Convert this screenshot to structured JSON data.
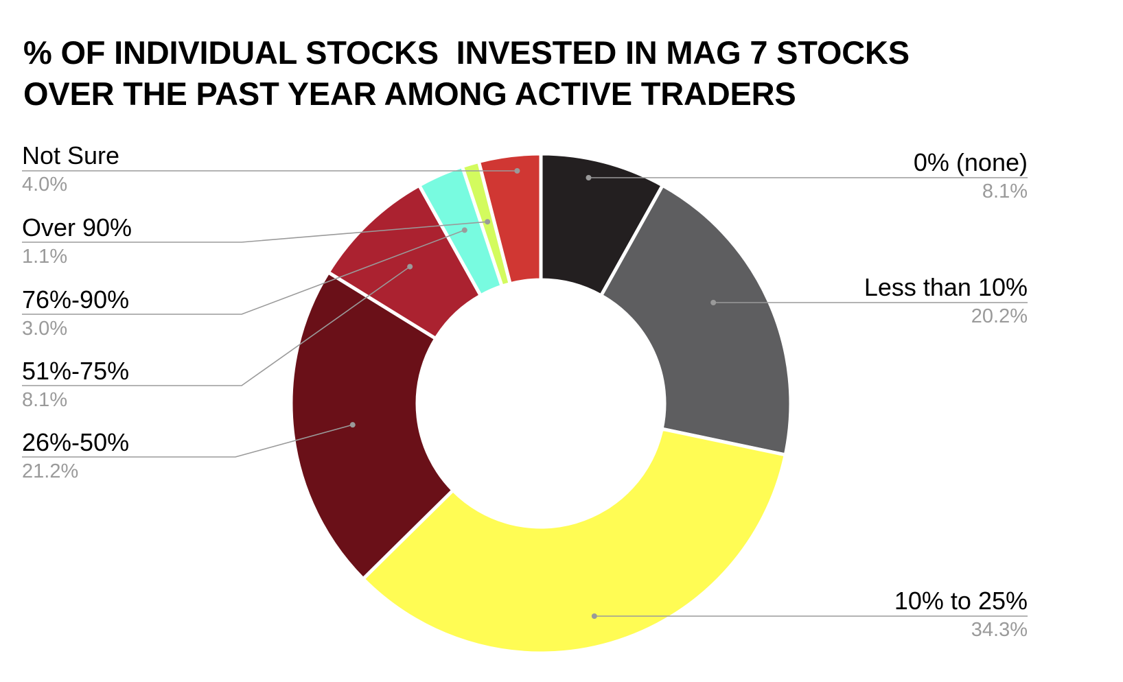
{
  "title": {
    "line1": "% OF INDIVIDUAL STOCKS  INVESTED IN MAG 7 STOCKS",
    "line2": "OVER THE PAST YEAR AMONG ACTIVE TRADERS"
  },
  "chart_data": {
    "type": "pie",
    "subtype": "donut",
    "title": "% OF INDIVIDUAL STOCKS INVESTED IN MAG 7 STOCKS OVER THE PAST YEAR AMONG ACTIVE TRADERS",
    "start_angle": "12 o'clock, clockwise",
    "categories": [
      "0% (none)",
      "Less than 10%",
      "10% to 25%",
      "26%-50%",
      "51%-75%",
      "76%-90%",
      "Over 90%",
      "Not Sure"
    ],
    "values": [
      8.1,
      20.2,
      34.3,
      21.2,
      8.1,
      3.0,
      1.1,
      4.0
    ],
    "value_labels": [
      "8.1%",
      "20.2%",
      "34.3%",
      "21.2%",
      "8.1%",
      "3.0%",
      "1.1%",
      "4.0%"
    ],
    "colors": [
      "#231f20",
      "#5e5e60",
      "#fffc54",
      "#6a1018",
      "#ab2230",
      "#78fbe0",
      "#d3fb5e",
      "#d03733"
    ],
    "unit": "%",
    "legend_position": "external callout labels with leader lines"
  },
  "labels": {
    "left": [
      {
        "name": "Not Sure",
        "pct": "4.0%"
      },
      {
        "name": "Over 90%",
        "pct": "1.1%"
      },
      {
        "name": "76%-90%",
        "pct": "3.0%"
      },
      {
        "name": "51%-75%",
        "pct": "8.1%"
      },
      {
        "name": "26%-50%",
        "pct": "21.2%"
      }
    ],
    "right": [
      {
        "name": "0% (none)",
        "pct": "8.1%"
      },
      {
        "name": "Less than 10%",
        "pct": "20.2%"
      },
      {
        "name": "10% to 25%",
        "pct": "34.3%"
      }
    ]
  },
  "style": {
    "leader_color": "#9a9a9a",
    "background": "#ffffff"
  }
}
